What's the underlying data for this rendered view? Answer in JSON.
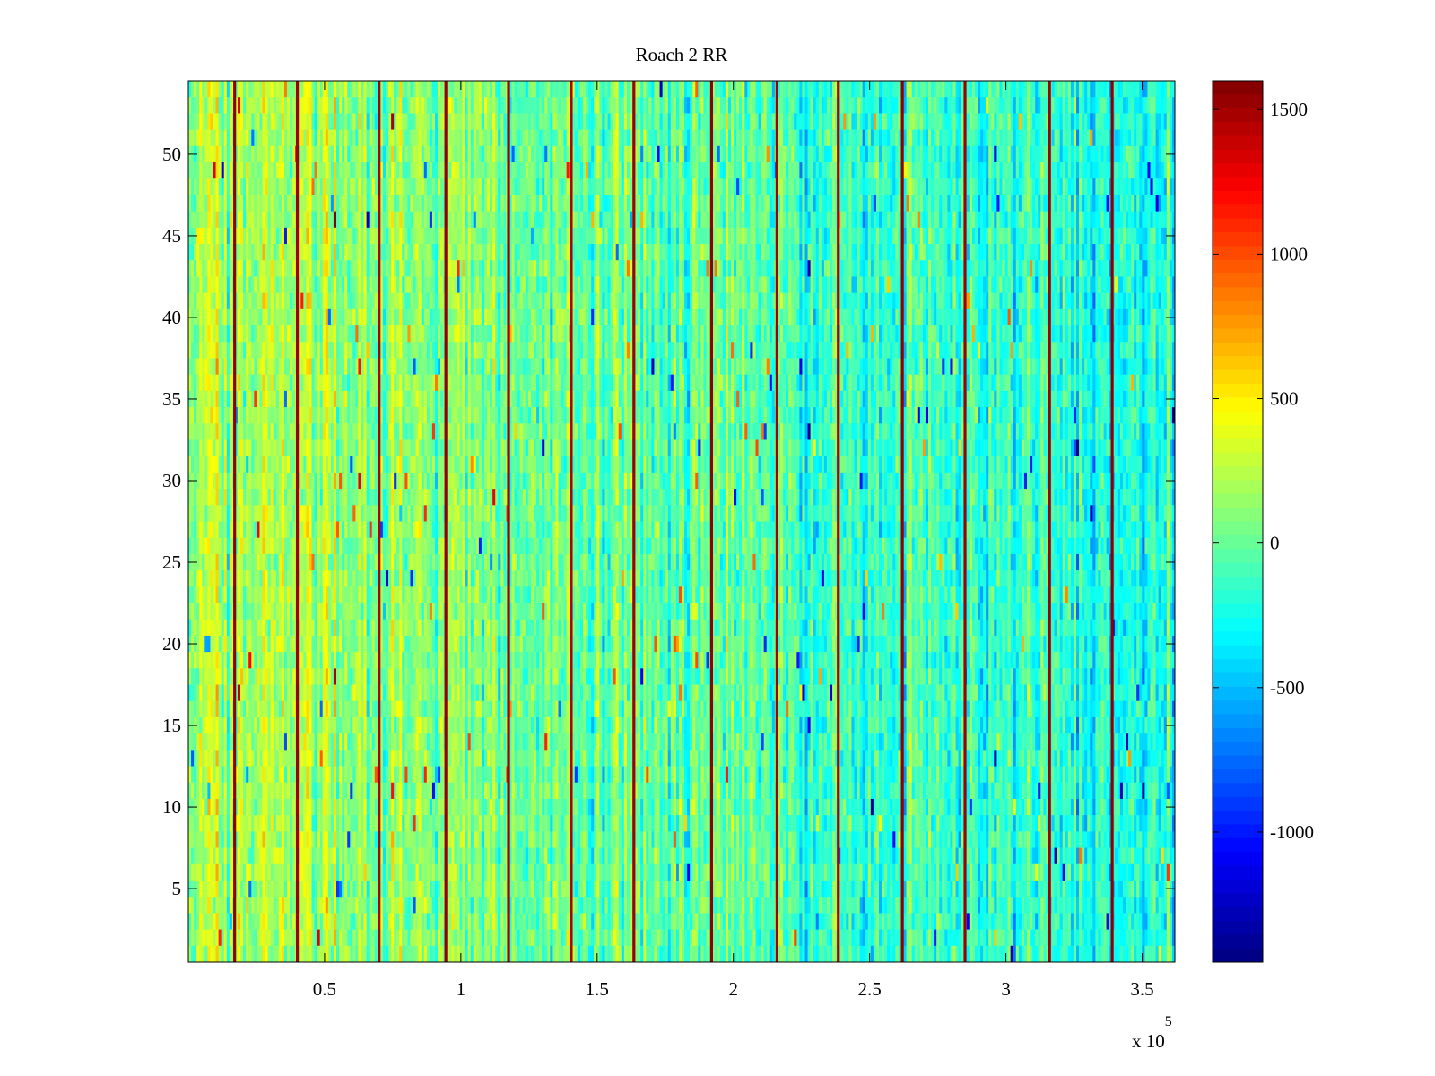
{
  "chart_data": {
    "type": "heatmap",
    "title": "Roach 2 RR",
    "xlabel": "",
    "ylabel": "",
    "x_exponent_label": "x 10",
    "x_exponent_power": "5",
    "xlim": [
      0,
      3.62
    ],
    "ylim": [
      0.5,
      54.5
    ],
    "x_ticks": [
      0.5,
      1,
      1.5,
      2,
      2.5,
      3,
      3.5
    ],
    "x_tick_labels": [
      "0.5",
      "1",
      "1.5",
      "2",
      "2.5",
      "3",
      "3.5"
    ],
    "y_ticks": [
      5,
      10,
      15,
      20,
      25,
      30,
      35,
      40,
      45,
      50
    ],
    "y_tick_labels": [
      "5",
      "10",
      "15",
      "20",
      "25",
      "30",
      "35",
      "40",
      "45",
      "50"
    ],
    "rows": 54,
    "colormap": "jet",
    "clim": [
      -1450,
      1600
    ],
    "colorbar_ticks": [
      1500,
      1000,
      500,
      0,
      -500,
      -1000
    ],
    "colorbar_tick_labels": [
      "1500",
      "1000",
      "500",
      "0",
      "-500",
      "-1000"
    ],
    "vertical_stripes": [
      {
        "x": 0.17,
        "value": 1550
      },
      {
        "x": 0.4,
        "value": 1500
      },
      {
        "x": 0.7,
        "value": 1450
      },
      {
        "x": 0.945,
        "value": 1550
      },
      {
        "x": 1.175,
        "value": 1500
      },
      {
        "x": 1.405,
        "value": 1450
      },
      {
        "x": 1.635,
        "value": 1500
      },
      {
        "x": 1.92,
        "value": 1550
      },
      {
        "x": 2.16,
        "value": 1500
      },
      {
        "x": 2.385,
        "value": 1450
      },
      {
        "x": 2.62,
        "value": 1550
      },
      {
        "x": 2.85,
        "value": 1500
      },
      {
        "x": 3.16,
        "value": 1500
      },
      {
        "x": 3.39,
        "value": 1550
      }
    ],
    "background": {
      "left_mean": 180,
      "right_mean": -250,
      "noise_spread": 550
    }
  }
}
